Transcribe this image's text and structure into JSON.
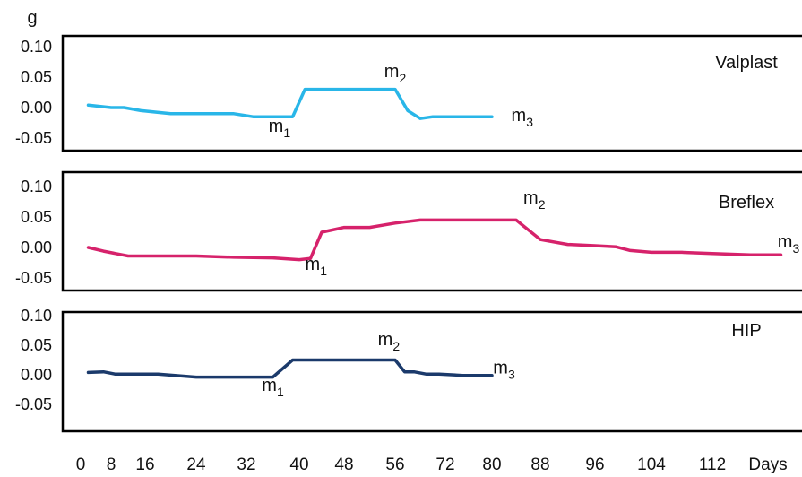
{
  "y_unit": "g",
  "x_unit": "Days",
  "chart_data": {
    "type": "line",
    "ylim": [
      -0.05,
      0.1
    ],
    "y_ticks": [
      "0.10",
      "0.05",
      "0.00",
      "-0.05"
    ],
    "x_ticks": [
      {
        "label": "0",
        "value": 0
      },
      {
        "label": "8",
        "value": 8
      },
      {
        "label": "16",
        "value": 16
      },
      {
        "label": "24",
        "value": 24
      },
      {
        "label": "32",
        "value": 32
      },
      {
        "label": "40",
        "value": 40
      },
      {
        "label": "48",
        "value": 48
      },
      {
        "label": "56",
        "value": 56
      },
      {
        "label": "72",
        "value": 72
      },
      {
        "label": "80",
        "value": 80
      },
      {
        "label": "88",
        "value": 88
      },
      {
        "label": "96",
        "value": 96
      },
      {
        "label": "104",
        "value": 104
      },
      {
        "label": "112",
        "value": 112
      }
    ],
    "panels": [
      {
        "label": "Valplast",
        "color": "#29b6e8",
        "x": [
          2,
          8,
          11,
          15,
          20,
          25,
          30,
          33,
          36,
          39,
          41,
          48,
          56,
          60,
          64,
          68,
          72,
          76,
          80
        ],
        "y": [
          0.004,
          0.0,
          0.0,
          -0.005,
          -0.01,
          -0.01,
          -0.01,
          -0.015,
          -0.015,
          -0.015,
          0.03,
          0.03,
          0.03,
          -0.005,
          -0.018,
          -0.015,
          -0.015,
          -0.015,
          -0.015
        ],
        "markers": [
          {
            "main": "m",
            "sub": "1",
            "x": 37,
            "y": -0.04
          },
          {
            "main": "m",
            "sub": "2",
            "x": 56,
            "y": 0.05
          },
          {
            "main": "m",
            "sub": "3",
            "x": 85,
            "y": -0.022
          }
        ]
      },
      {
        "label": "Breflex",
        "color": "#d6226b",
        "x": [
          2,
          6,
          12,
          17,
          24,
          30,
          36,
          40,
          42,
          44,
          48,
          52,
          56,
          64,
          72,
          80,
          84,
          88,
          92,
          96,
          99,
          101,
          104,
          108,
          112,
          117,
          121
        ],
        "y": [
          0.0,
          -0.006,
          -0.014,
          -0.014,
          -0.014,
          -0.016,
          -0.017,
          -0.02,
          -0.018,
          0.025,
          0.033,
          0.033,
          0.04,
          0.045,
          0.045,
          0.045,
          0.045,
          0.013,
          0.005,
          0.003,
          0.001,
          -0.005,
          -0.008,
          -0.008,
          -0.01,
          -0.012,
          -0.012
        ],
        "markers": [
          {
            "main": "m",
            "sub": "1",
            "x": 43,
            "y": -0.037
          },
          {
            "main": "m",
            "sub": "2",
            "x": 87,
            "y": 0.072
          },
          {
            "main": "m",
            "sub": "3",
            "x": 122,
            "y": 0.0
          }
        ]
      },
      {
        "label": "HIP",
        "color": "#1b3a6b",
        "x": [
          2,
          6,
          9,
          14,
          18,
          24,
          30,
          36,
          39,
          41,
          48,
          56,
          59,
          62,
          66,
          70,
          75,
          80
        ],
        "y": [
          0.004,
          0.005,
          0.001,
          0.001,
          0.001,
          -0.004,
          -0.004,
          -0.004,
          0.025,
          0.025,
          0.025,
          0.025,
          0.005,
          0.005,
          0.001,
          0.001,
          -0.001,
          -0.001
        ],
        "markers": [
          {
            "main": "m",
            "sub": "1",
            "x": 36,
            "y": -0.027
          },
          {
            "main": "m",
            "sub": "2",
            "x": 55,
            "y": 0.05
          },
          {
            "main": "m",
            "sub": "3",
            "x": 82,
            "y": 0.002
          }
        ]
      }
    ]
  }
}
